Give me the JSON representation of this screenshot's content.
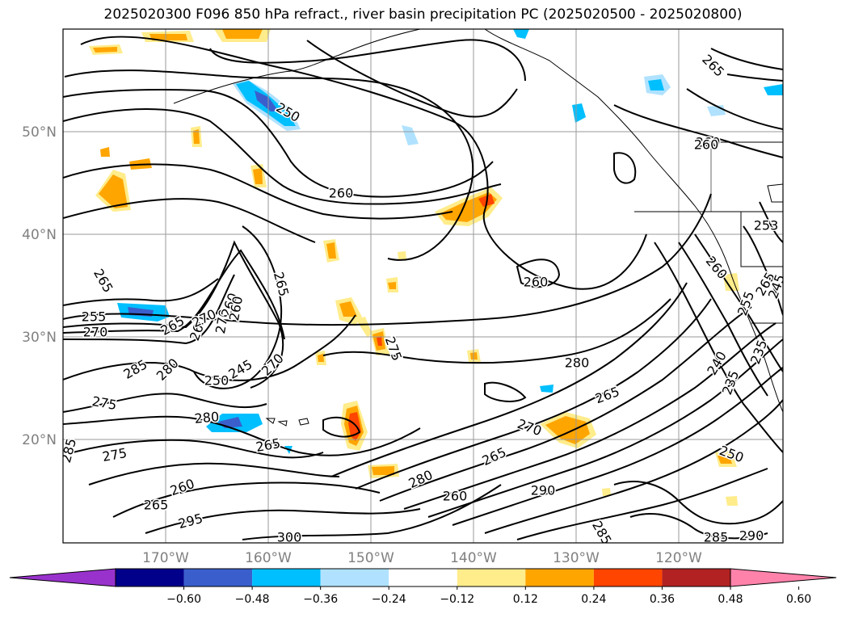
{
  "title": "2025020300 F096 850 hPa refract., river basin precipitation PC (2025020500 - 2025020800)",
  "map": {
    "lat_labels": [
      "50°N",
      "40°N",
      "30°N",
      "20°N"
    ],
    "lon_labels": [
      "170°W",
      "160°W",
      "150°W",
      "140°W",
      "130°W",
      "120°W"
    ],
    "contour_labels": [
      {
        "text": "265",
        "angle": 45
      },
      {
        "text": "250",
        "angle": 30
      },
      {
        "text": "260",
        "angle": 0
      },
      {
        "text": "260",
        "angle": 0
      },
      {
        "text": "260",
        "angle": 0
      },
      {
        "text": "265",
        "angle": 60
      },
      {
        "text": "265",
        "angle": 75
      },
      {
        "text": "255",
        "angle": 0
      },
      {
        "text": "270",
        "angle": 0
      },
      {
        "text": "265",
        "angle": -30
      },
      {
        "text": "260",
        "angle": -70
      },
      {
        "text": "270",
        "angle": -80
      },
      {
        "text": "260",
        "angle": -70
      },
      {
        "text": "285",
        "angle": -30
      },
      {
        "text": "280",
        "angle": -45
      },
      {
        "text": "250",
        "angle": 0
      },
      {
        "text": "245",
        "angle": -30
      },
      {
        "text": "270",
        "angle": -45
      },
      {
        "text": "275",
        "angle": 70
      },
      {
        "text": "280",
        "angle": 0
      },
      {
        "text": "265",
        "angle": -20
      },
      {
        "text": "275",
        "angle": 10
      },
      {
        "text": "280",
        "angle": -5
      },
      {
        "text": "270",
        "angle": 20
      },
      {
        "text": "285",
        "angle": -75
      },
      {
        "text": "275",
        "angle": -10
      },
      {
        "text": "265",
        "angle": -10
      },
      {
        "text": "260",
        "angle": -20
      },
      {
        "text": "265",
        "angle": 0
      },
      {
        "text": "295",
        "angle": -15
      },
      {
        "text": "300",
        "angle": 0
      },
      {
        "text": "280",
        "angle": -25
      },
      {
        "text": "260",
        "angle": 0
      },
      {
        "text": "265",
        "angle": -25
      },
      {
        "text": "270",
        "angle": -25
      },
      {
        "text": "290",
        "angle": 0
      },
      {
        "text": "285",
        "angle": 60
      },
      {
        "text": "285",
        "angle": 0
      },
      {
        "text": "290",
        "angle": 0
      },
      {
        "text": "250",
        "angle": 20
      },
      {
        "text": "240",
        "angle": -60
      },
      {
        "text": "235",
        "angle": -70
      },
      {
        "text": "235",
        "angle": -70
      },
      {
        "text": "265",
        "angle": -60
      },
      {
        "text": "260",
        "angle": 50
      },
      {
        "text": "255",
        "angle": -70
      },
      {
        "text": "245",
        "angle": -70
      },
      {
        "text": "260",
        "angle": -80
      },
      {
        "text": "260",
        "angle": 0
      },
      {
        "text": "253",
        "angle": 0
      }
    ]
  },
  "colorbar": {
    "colors": [
      "#9932cc",
      "#00008b",
      "#3a5fcd",
      "#00bfff",
      "#b0e2ff",
      "#ffffff",
      "#ffec8b",
      "#ffa500",
      "#ff4500",
      "#b22222",
      "#ff82ab"
    ],
    "tick_labels": [
      "−0.60",
      "−0.48",
      "−0.36",
      "−0.24",
      "−0.12",
      "0.12",
      "0.24",
      "0.36",
      "0.48",
      "0.60"
    ]
  }
}
